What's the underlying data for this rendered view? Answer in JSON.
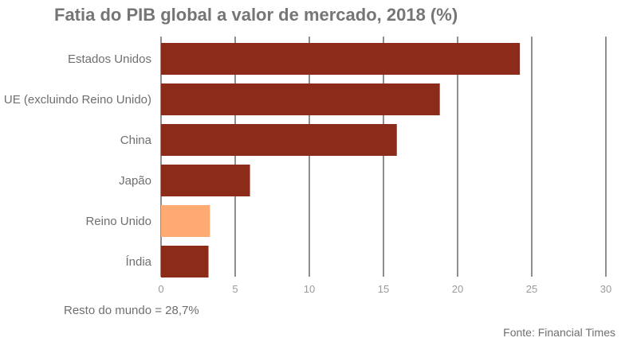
{
  "chart_data": {
    "type": "bar",
    "orientation": "horizontal",
    "title": "Fatia do PIB global a valor de mercado, 2018 (%)",
    "categories": [
      "Estados Unidos",
      "UE (excluindo Reino Unido)",
      "China",
      "Japão",
      "Reino Unido",
      "Índia"
    ],
    "values": [
      24.2,
      18.8,
      15.9,
      6.0,
      3.3,
      3.2
    ],
    "xlim": [
      0,
      30
    ],
    "xticks": [
      0,
      5,
      10,
      15,
      20,
      25,
      30
    ],
    "grid": "vertical",
    "colors": {
      "default": "#8d2b1b",
      "highlight": "#ffaa72",
      "highlight_category": "Reino Unido",
      "grid": "#1f1f1f",
      "tick_label": "#9a9a9a",
      "category_label": "#6f6f6f"
    }
  },
  "note": "Resto do mundo = 28,7%",
  "source": "Fonte: Financial Times"
}
